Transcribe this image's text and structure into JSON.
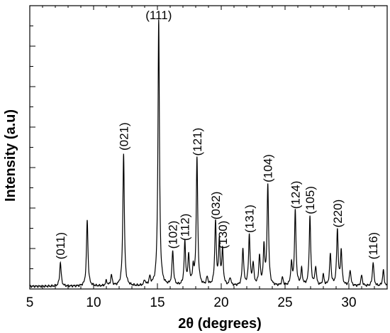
{
  "chart_data": {
    "type": "line",
    "title": "",
    "xlabel": "2θ (degrees)",
    "ylabel": "Intensity (a.u)",
    "xlim": [
      5,
      33
    ],
    "ylim": [
      0,
      100
    ],
    "grid": false,
    "y_tick_labels_shown": false,
    "x_ticks": [
      5,
      10,
      15,
      20,
      25,
      30
    ],
    "x_tick_labels": [
      "5",
      "10",
      "15",
      "20",
      "25",
      "30"
    ],
    "line_color": "#000000",
    "baseline": 1,
    "peaks": [
      {
        "x": 7.4,
        "y": 9
      },
      {
        "x": 9.5,
        "y": 25
      },
      {
        "x": 11.0,
        "y": 2
      },
      {
        "x": 11.4,
        "y": 4
      },
      {
        "x": 12.35,
        "y": 50
      },
      {
        "x": 14.0,
        "y": 2
      },
      {
        "x": 14.4,
        "y": 3
      },
      {
        "x": 15.1,
        "y": 100
      },
      {
        "x": 16.2,
        "y": 13
      },
      {
        "x": 17.15,
        "y": 16
      },
      {
        "x": 17.45,
        "y": 11
      },
      {
        "x": 17.8,
        "y": 6
      },
      {
        "x": 18.1,
        "y": 48
      },
      {
        "x": 18.9,
        "y": 3
      },
      {
        "x": 19.55,
        "y": 24
      },
      {
        "x": 19.85,
        "y": 16
      },
      {
        "x": 20.1,
        "y": 13
      },
      {
        "x": 20.7,
        "y": 3
      },
      {
        "x": 21.7,
        "y": 14
      },
      {
        "x": 22.2,
        "y": 19
      },
      {
        "x": 22.5,
        "y": 8
      },
      {
        "x": 23.0,
        "y": 11
      },
      {
        "x": 23.35,
        "y": 14
      },
      {
        "x": 23.65,
        "y": 38
      },
      {
        "x": 24.8,
        "y": 3
      },
      {
        "x": 25.5,
        "y": 8
      },
      {
        "x": 25.8,
        "y": 28
      },
      {
        "x": 26.3,
        "y": 6
      },
      {
        "x": 26.95,
        "y": 26
      },
      {
        "x": 27.4,
        "y": 7
      },
      {
        "x": 28.0,
        "y": 4
      },
      {
        "x": 28.55,
        "y": 12
      },
      {
        "x": 29.1,
        "y": 21
      },
      {
        "x": 29.4,
        "y": 13
      },
      {
        "x": 30.1,
        "y": 6
      },
      {
        "x": 31.0,
        "y": 4
      },
      {
        "x": 31.9,
        "y": 9
      },
      {
        "x": 32.7,
        "y": 6
      }
    ],
    "annotations": [
      {
        "text": "(011)",
        "x": 7.4,
        "y": 9
      },
      {
        "text": "(021)",
        "x": 12.35,
        "y": 50
      },
      {
        "text": "(111)",
        "x": 15.1,
        "y": 100
      },
      {
        "text": "(102)",
        "x": 16.2,
        "y": 13
      },
      {
        "text": "(112)",
        "x": 17.15,
        "y": 16
      },
      {
        "text": "(121)",
        "x": 18.1,
        "y": 48
      },
      {
        "text": "(032)",
        "x": 19.55,
        "y": 24
      },
      {
        "text": "(130)",
        "x": 20.1,
        "y": 13
      },
      {
        "text": "(131)",
        "x": 22.2,
        "y": 19
      },
      {
        "text": "(104)",
        "x": 23.65,
        "y": 38
      },
      {
        "text": "(124)",
        "x": 25.8,
        "y": 28
      },
      {
        "text": "(105)",
        "x": 26.95,
        "y": 26
      },
      {
        "text": "(220)",
        "x": 29.1,
        "y": 21
      },
      {
        "text": "(116)",
        "x": 31.9,
        "y": 9
      }
    ]
  }
}
